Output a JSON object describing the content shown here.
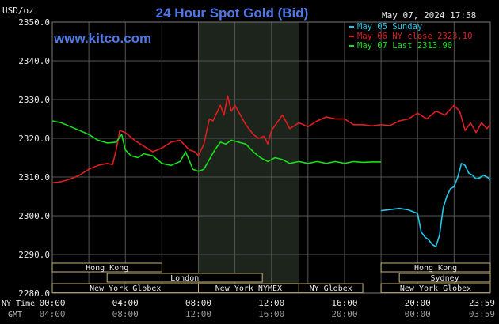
{
  "chart_data": {
    "type": "line",
    "title": "24 Hour Spot Gold (Bid)",
    "site": "www.kitco.com",
    "timestamp": "May 07, 2024 17:58",
    "ylabel": "USD/oz",
    "ylim": [
      2280,
      2350
    ],
    "yticks": [
      "2350.0",
      "2340.0",
      "2330.0",
      "2320.0",
      "2310.0",
      "2300.0",
      "2290.0",
      "2280.0"
    ],
    "x_row_label_ny": "NY Time",
    "x_row_label_gmt": "GMT",
    "xticks_ny": [
      "00:00",
      "04:00",
      "08:00",
      "12:00",
      "16:00",
      "20:00",
      "23:59"
    ],
    "xticks_gmt": [
      "04:00",
      "08:00",
      "12:00",
      "16:00",
      "20:00",
      "00:00",
      "03:59"
    ],
    "grid": true,
    "legend_position": "top-right",
    "legend": [
      {
        "label": "May 05 Sunday",
        "color": "#22c8e8"
      },
      {
        "label": "May 06 NY close 2323.10",
        "color": "#e01e1e"
      },
      {
        "label": "May 07 Last 2313.90",
        "color": "#18e018"
      }
    ],
    "series": [
      {
        "name": "May 05 Sunday",
        "color": "#22c8e8",
        "x": [
          18.0,
          18.5,
          19.0,
          19.5,
          20.0,
          20.2,
          20.4,
          20.6,
          20.8,
          21.0,
          21.2,
          21.4,
          21.6,
          21.8,
          22.0,
          22.2,
          22.4,
          22.6,
          22.8,
          23.0,
          23.2,
          23.4,
          23.6,
          23.8,
          23.98
        ],
        "y": [
          2301.3,
          2301.6,
          2301.9,
          2301.5,
          2300.6,
          2295.8,
          2294.5,
          2293.8,
          2292.6,
          2292.0,
          2295.0,
          2302.0,
          2305.0,
          2307.0,
          2307.5,
          2310.0,
          2313.5,
          2313.0,
          2311.0,
          2310.5,
          2309.5,
          2309.8,
          2310.5,
          2310.0,
          2309.3
        ]
      },
      {
        "name": "May 06 NY close 2323.10",
        "color": "#e01e1e",
        "x": [
          0.0,
          0.5,
          1.0,
          1.5,
          2.0,
          2.5,
          3.0,
          3.3,
          3.5,
          3.7,
          4.0,
          4.5,
          5.0,
          5.5,
          6.0,
          6.5,
          7.0,
          7.5,
          7.8,
          8.0,
          8.3,
          8.6,
          8.8,
          9.0,
          9.2,
          9.4,
          9.6,
          9.8,
          10.0,
          10.3,
          10.6,
          11.0,
          11.3,
          11.6,
          11.8,
          12.0,
          12.3,
          12.6,
          13.0,
          13.5,
          14.0,
          14.5,
          15.0,
          15.5,
          16.0,
          16.5,
          17.0,
          17.5,
          18.0,
          18.5,
          19.0,
          19.5,
          20.0,
          20.5,
          21.0,
          21.5,
          22.0,
          22.3,
          22.6,
          22.9,
          23.2,
          23.5,
          23.8,
          23.98
        ],
        "y": [
          2308.5,
          2308.8,
          2309.5,
          2310.5,
          2312.0,
          2313.0,
          2313.5,
          2313.2,
          2317.0,
          2322.0,
          2321.5,
          2319.5,
          2318.0,
          2316.5,
          2317.5,
          2319.0,
          2319.5,
          2317.0,
          2316.5,
          2315.5,
          2318.5,
          2325.0,
          2324.5,
          2326.5,
          2328.5,
          2326.0,
          2331.0,
          2327.0,
          2328.5,
          2326.0,
          2323.5,
          2321.0,
          2320.0,
          2320.5,
          2318.5,
          2322.0,
          2324.0,
          2326.0,
          2322.5,
          2324.0,
          2323.0,
          2324.5,
          2325.5,
          2325.0,
          2325.0,
          2323.5,
          2323.5,
          2323.2,
          2323.5,
          2323.3,
          2324.5,
          2325.0,
          2326.5,
          2325.0,
          2327.0,
          2326.0,
          2328.5,
          2327.0,
          2322.0,
          2324.0,
          2321.5,
          2324.0,
          2322.5,
          2323.5
        ]
      },
      {
        "name": "May 07 Last 2313.90",
        "color": "#18e018",
        "x": [
          0.0,
          0.5,
          1.0,
          1.5,
          2.0,
          2.5,
          3.0,
          3.5,
          3.8,
          4.0,
          4.3,
          4.7,
          5.0,
          5.5,
          6.0,
          6.5,
          7.0,
          7.3,
          7.7,
          8.0,
          8.3,
          8.6,
          8.9,
          9.2,
          9.5,
          9.8,
          10.2,
          10.6,
          11.0,
          11.4,
          11.8,
          12.2,
          12.6,
          13.0,
          13.5,
          14.0,
          14.5,
          15.0,
          15.5,
          16.0,
          16.5,
          17.0,
          17.5,
          18.0
        ],
        "y": [
          2324.5,
          2324.0,
          2323.0,
          2322.0,
          2321.0,
          2319.5,
          2318.8,
          2319.0,
          2321.0,
          2317.0,
          2315.5,
          2315.0,
          2316.0,
          2315.5,
          2313.5,
          2313.0,
          2314.0,
          2316.5,
          2312.0,
          2311.5,
          2312.0,
          2314.5,
          2317.0,
          2319.0,
          2318.5,
          2319.5,
          2319.0,
          2318.5,
          2316.5,
          2315.0,
          2314.0,
          2315.0,
          2314.5,
          2313.5,
          2314.0,
          2313.5,
          2314.0,
          2313.5,
          2314.0,
          2313.5,
          2314.0,
          2313.8,
          2313.9,
          2313.9
        ]
      }
    ],
    "sessions": [
      {
        "label": "Hong Kong",
        "start": 0.0,
        "end": 6.0,
        "row": 0
      },
      {
        "label": "Hong Kong",
        "start": 18.0,
        "end": 23.98,
        "row": 0
      },
      {
        "label": "London",
        "start": 3.0,
        "end": 11.5,
        "row": 1
      },
      {
        "label": "Sydney",
        "start": 19.0,
        "end": 23.98,
        "row": 1
      },
      {
        "label": "New York Globex",
        "start": 0.0,
        "end": 8.0,
        "row": 2
      },
      {
        "label": "New York NYMEX",
        "start": 8.0,
        "end": 13.5,
        "row": 2
      },
      {
        "label": "NY Globex",
        "start": 13.5,
        "end": 17.0,
        "row": 2
      },
      {
        "label": "New York Globex",
        "start": 18.0,
        "end": 23.98,
        "row": 2
      }
    ],
    "highlight_range": [
      8.0,
      13.5
    ]
  }
}
